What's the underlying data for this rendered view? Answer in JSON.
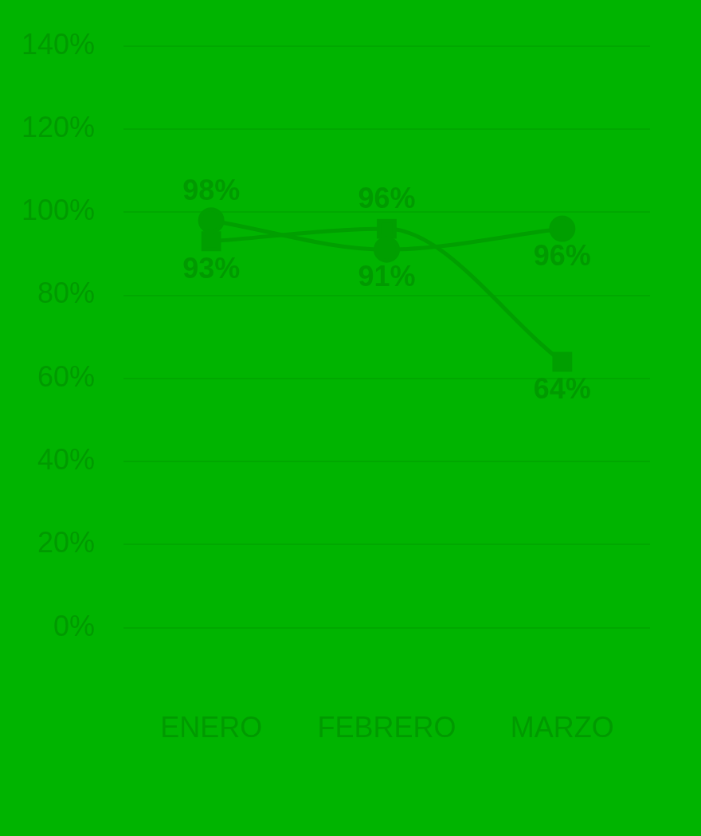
{
  "chart_data": {
    "type": "line",
    "categories": [
      "ENERO",
      "FEBRERO",
      "MARZO"
    ],
    "series": [
      {
        "color": "#009f00",
        "values": [
          98,
          91,
          96
        ],
        "value_labels": [
          "98%",
          "91%",
          "96%"
        ],
        "marker": "circle"
      },
      {
        "color": "#009f00",
        "values": [
          93,
          96,
          64
        ],
        "value_labels": [
          "93%",
          "96%",
          "64%"
        ],
        "marker": "square"
      }
    ],
    "ylim": [
      0,
      140
    ],
    "yticks": [
      {
        "value": 0,
        "label": "0%"
      },
      {
        "value": 20,
        "label": "20%"
      },
      {
        "value": 40,
        "label": "40%"
      },
      {
        "value": 60,
        "label": "60%"
      },
      {
        "value": 80,
        "label": "80%"
      },
      {
        "value": 100,
        "label": "100%"
      },
      {
        "value": 120,
        "label": "120%"
      },
      {
        "value": 140,
        "label": "140%"
      }
    ],
    "grid": "y",
    "legend": false
  }
}
